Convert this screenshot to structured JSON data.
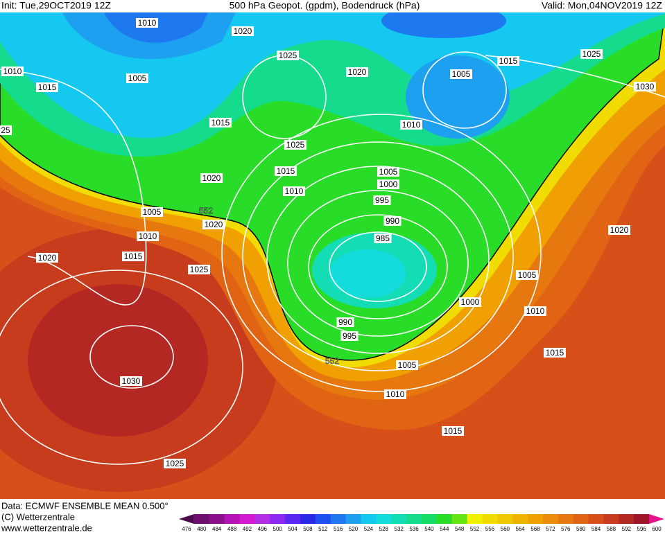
{
  "header": {
    "init": "Init: Tue,29OCT2019 12Z",
    "title": "500 hPa Geopot. (gpdm), Bodendruck (hPa)",
    "valid": "Valid: Mon,04NOV2019 12Z"
  },
  "map": {
    "contour_labels": [
      "1010",
      "1020",
      "1025",
      "1010",
      "1005",
      "1015",
      "1020",
      "1005",
      "1015",
      "1025",
      "1030",
      "1015",
      "1010",
      "1025",
      "1015",
      "1005",
      "1020",
      "1000",
      "1010",
      "995",
      "1005",
      "552",
      "1020",
      "990",
      "1010",
      "985",
      "1020",
      "1015",
      "1025",
      "1020",
      "1005",
      "1000",
      "1010",
      "990",
      "995",
      "1015",
      "552",
      "1005",
      "1030",
      "1010",
      "1015",
      "1025",
      "25"
    ]
  },
  "footer": {
    "data": "Data: ECMWF ENSEMBLE MEAN 0.500°",
    "copyright": "(C) Wetterzentrale",
    "url": "www.wetterzentrale.de"
  },
  "colorbar": {
    "ticks": [
      476,
      480,
      484,
      488,
      492,
      496,
      500,
      504,
      508,
      512,
      516,
      520,
      524,
      528,
      532,
      536,
      540,
      544,
      548,
      552,
      556,
      560,
      564,
      568,
      572,
      576,
      580,
      584,
      588,
      592,
      596,
      600
    ],
    "colors": [
      "#4b0a4b",
      "#6e0f6e",
      "#8b0f8b",
      "#b412b4",
      "#d21ad2",
      "#b42de6",
      "#8c28f0",
      "#5a28f0",
      "#2828e6",
      "#1e50f0",
      "#1e78f0",
      "#1ea0f0",
      "#14c8f0",
      "#14dcdc",
      "#14dcb4",
      "#14dc8c",
      "#14dc64",
      "#28dc28",
      "#64e614",
      "#f0f000",
      "#f0dc00",
      "#f0c800",
      "#f0b400",
      "#f0a000",
      "#eb8c0a",
      "#e6780f",
      "#e06414",
      "#d85019",
      "#c83c1e",
      "#b42823",
      "#a01428",
      "#e6148c"
    ]
  }
}
